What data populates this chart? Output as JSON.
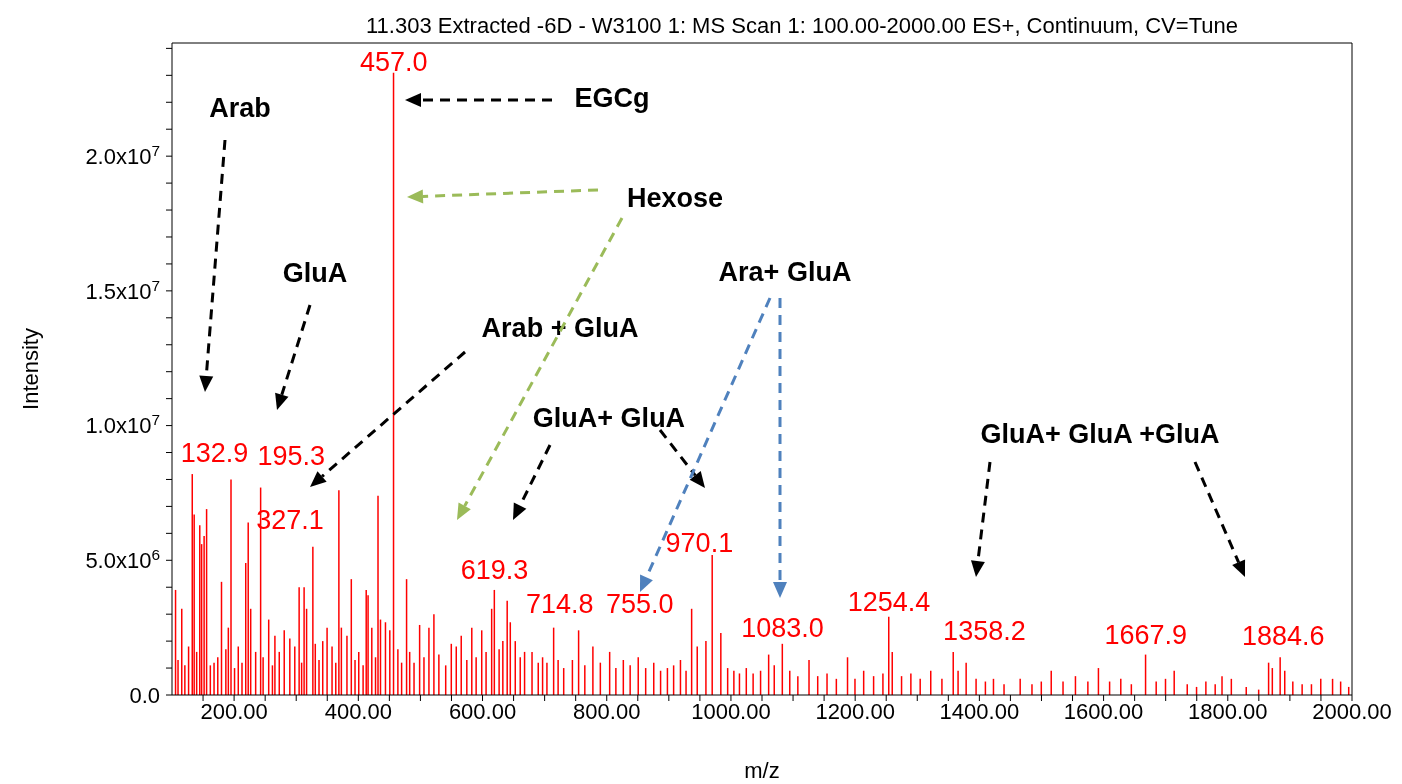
{
  "chart_data": {
    "type": "bar",
    "title": "11.303 Extracted -6D - W3100 1: MS Scan 1: 100.00-2000.00 ES+, Continuum, CV=Tune",
    "xlabel": "m/z",
    "ylabel": "Intensity",
    "color": "#ff0000",
    "x": [
      106,
      110,
      116,
      121,
      127,
      132.9,
      136,
      140,
      145,
      148,
      152,
      156,
      162,
      168,
      174,
      180,
      187,
      191,
      195.3,
      201,
      207,
      213,
      219,
      223,
      227,
      235,
      243,
      247,
      256,
      262,
      266,
      273,
      281,
      290,
      298,
      305,
      309,
      313,
      317,
      327.1,
      331,
      337,
      343,
      350,
      358,
      364,
      369,
      373,
      382,
      389,
      395,
      401,
      408,
      413,
      416,
      422,
      428,
      432,
      436,
      444,
      451,
      457,
      464,
      470,
      478,
      483,
      490,
      499,
      506,
      514,
      522,
      530,
      541,
      550,
      558,
      566,
      575,
      583,
      590,
      599,
      606,
      615,
      619.3,
      627,
      633,
      640,
      645,
      653,
      661,
      668,
      680,
      690,
      697,
      704,
      714.8,
      722,
      731,
      745,
      755,
      765,
      778,
      790,
      805,
      815,
      827,
      838,
      851,
      863,
      876,
      887,
      898,
      908,
      919,
      928,
      937,
      946,
      960,
      970.1,
      984,
      995,
      1005,
      1014,
      1025,
      1036,
      1048,
      1061,
      1070,
      1083,
      1095,
      1108,
      1126,
      1140,
      1155,
      1170,
      1188,
      1200,
      1214,
      1230,
      1245,
      1254.4,
      1260,
      1275,
      1290,
      1305,
      1322,
      1340,
      1358.2,
      1366,
      1379,
      1395,
      1410,
      1423,
      1440,
      1466,
      1485,
      1500,
      1516,
      1535,
      1555,
      1575,
      1592,
      1610,
      1628,
      1645,
      1667.9,
      1685,
      1700,
      1714,
      1735,
      1750,
      1765,
      1780,
      1791,
      1806,
      1830,
      1850,
      1866,
      1872,
      1884.6,
      1892,
      1905,
      1920,
      1935,
      1950,
      1969,
      1982,
      1995
    ],
    "values": [
      3900000,
      1300000,
      3200000,
      1100000,
      1800000,
      8200000,
      6700000,
      1600000,
      6300000,
      5600000,
      5900000,
      6900000,
      1100000,
      1200000,
      1400000,
      4200000,
      1700000,
      2500000,
      8000000,
      1000000,
      1800000,
      1200000,
      4900000,
      6400000,
      3200000,
      1600000,
      7700000,
      1400000,
      2800000,
      1100000,
      2200000,
      1600000,
      2400000,
      2100000,
      1800000,
      4000000,
      1200000,
      4000000,
      3200000,
      5500000,
      1900000,
      1300000,
      2000000,
      2500000,
      1800000,
      1200000,
      7600000,
      2500000,
      2200000,
      4300000,
      1300000,
      1600000,
      1100000,
      3900000,
      3700000,
      2500000,
      1400000,
      7400000,
      2800000,
      2700000,
      2400000,
      23100000,
      1700000,
      1200000,
      4300000,
      1600000,
      1200000,
      2600000,
      1400000,
      2500000,
      3000000,
      1500000,
      1100000,
      1900000,
      1800000,
      2200000,
      1300000,
      2500000,
      1400000,
      2400000,
      1600000,
      3200000,
      3900000,
      1700000,
      2000000,
      3500000,
      2700000,
      2000000,
      1400000,
      1600000,
      1600000,
      1200000,
      1400000,
      1200000,
      2500000,
      1300000,
      1000000,
      1300000,
      2400000,
      1100000,
      1800000,
      1200000,
      1600000,
      1000000,
      1300000,
      1100000,
      1400000,
      1000000,
      1200000,
      900000,
      1000000,
      1100000,
      1300000,
      900000,
      3200000,
      1800000,
      2000000,
      5200000,
      2300000,
      1000000,
      900000,
      800000,
      1000000,
      800000,
      900000,
      1500000,
      1100000,
      1900000,
      900000,
      700000,
      1300000,
      700000,
      800000,
      600000,
      1400000,
      600000,
      900000,
      700000,
      800000,
      2900000,
      1600000,
      700000,
      800000,
      600000,
      900000,
      600000,
      1600000,
      900000,
      1200000,
      600000,
      500000,
      600000,
      400000,
      600000,
      400000,
      500000,
      900000,
      500000,
      700000,
      500000,
      1000000,
      500000,
      600000,
      400000,
      1500000,
      500000,
      600000,
      900000,
      400000,
      300000,
      500000,
      400000,
      700000,
      600000,
      300000,
      200000,
      1200000,
      1000000,
      1400000,
      900000,
      500000,
      400000,
      400000,
      600000,
      600000,
      500000,
      300000
    ],
    "xlim": [
      100,
      2000
    ],
    "xticks": [
      {
        "value": 150,
        "label": null
      },
      {
        "value": 200,
        "label": "200.00"
      },
      {
        "value": 250,
        "label": null
      },
      {
        "value": 300,
        "label": null
      },
      {
        "value": 350,
        "label": null
      },
      {
        "value": 400,
        "label": "400.00"
      },
      {
        "value": 450,
        "label": null
      },
      {
        "value": 500,
        "label": null
      },
      {
        "value": 550,
        "label": null
      },
      {
        "value": 600,
        "label": "600.00"
      },
      {
        "value": 650,
        "label": null
      },
      {
        "value": 700,
        "label": null
      },
      {
        "value": 750,
        "label": null
      },
      {
        "value": 800,
        "label": "800.00"
      },
      {
        "value": 850,
        "label": null
      },
      {
        "value": 900,
        "label": null
      },
      {
        "value": 950,
        "label": null
      },
      {
        "value": 1000,
        "label": "1000.00"
      },
      {
        "value": 1050,
        "label": null
      },
      {
        "value": 1100,
        "label": null
      },
      {
        "value": 1150,
        "label": null
      },
      {
        "value": 1200,
        "label": "1200.00"
      },
      {
        "value": 1250,
        "label": null
      },
      {
        "value": 1300,
        "label": null
      },
      {
        "value": 1350,
        "label": null
      },
      {
        "value": 1400,
        "label": "1400.00"
      },
      {
        "value": 1450,
        "label": null
      },
      {
        "value": 1500,
        "label": null
      },
      {
        "value": 1550,
        "label": null
      },
      {
        "value": 1600,
        "label": "1600.00"
      },
      {
        "value": 1650,
        "label": null
      },
      {
        "value": 1700,
        "label": null
      },
      {
        "value": 1750,
        "label": null
      },
      {
        "value": 1800,
        "label": "1800.00"
      },
      {
        "value": 1850,
        "label": null
      },
      {
        "value": 1900,
        "label": null
      },
      {
        "value": 1950,
        "label": null
      },
      {
        "value": 2000,
        "label": "2000.00"
      }
    ],
    "ylim": [
      0,
      24200000
    ],
    "yticks": [
      {
        "value": 0,
        "label": "0.0"
      },
      {
        "value": 1000000,
        "label": null
      },
      {
        "value": 2000000,
        "label": null
      },
      {
        "value": 3000000,
        "label": null
      },
      {
        "value": 4000000,
        "label": null
      },
      {
        "value": 5000000,
        "label": "5.0x10$^{6}$"
      },
      {
        "value": 6000000,
        "label": null
      },
      {
        "value": 7000000,
        "label": null
      },
      {
        "value": 8000000,
        "label": null
      },
      {
        "value": 9000000,
        "label": null
      },
      {
        "value": 10000000,
        "label": "1.0x10$^{7}$"
      },
      {
        "value": 11000000,
        "label": null
      },
      {
        "value": 12000000,
        "label": null
      },
      {
        "value": 13000000,
        "label": null
      },
      {
        "value": 14000000,
        "label": null
      },
      {
        "value": 15000000,
        "label": "1.5x10$^{7}$"
      },
      {
        "value": 16000000,
        "label": null
      },
      {
        "value": 17000000,
        "label": null
      },
      {
        "value": 18000000,
        "label": null
      },
      {
        "value": 19000000,
        "label": null
      },
      {
        "value": 20000000,
        "label": "2.0x10$^{7}$"
      },
      {
        "value": 21000000,
        "label": null
      },
      {
        "value": 22000000,
        "label": null
      },
      {
        "value": 23000000,
        "label": null
      },
      {
        "value": 24000000,
        "label": null
      }
    ],
    "annotations": [
      {
        "text": "132.9",
        "x": 132.9,
        "y": 8200000
      },
      {
        "text": "195.3",
        "x": 195.3,
        "y": 8000000
      },
      {
        "text": "327.1",
        "x": 327.1,
        "y": 5500000
      },
      {
        "text": "457.0",
        "x": 457,
        "y": 23100000
      },
      {
        "text": "619.3",
        "x": 619.3,
        "y": 3900000
      },
      {
        "text": "714.8",
        "x": 714.8,
        "y": 2500000
      },
      {
        "text": "755.0",
        "x": 755,
        "y": 2400000
      },
      {
        "text": "970.1",
        "x": 970.1,
        "y": 5200000
      },
      {
        "text": "1083.0",
        "x": 1083,
        "y": 1900000
      },
      {
        "text": "1254.4",
        "x": 1254.4,
        "y": 2900000
      },
      {
        "text": "1358.2",
        "x": 1358.2,
        "y": 1600000
      },
      {
        "text": "1667.9",
        "x": 1667.9,
        "y": 1500000
      },
      {
        "text": "1884.6",
        "x": 1884.6,
        "y": 1400000
      },
      "Arab",
      "GluA",
      "Arab + GluA",
      "EGCg",
      "Hexose",
      "GluA+ GluA",
      "Ara+ GluA",
      "GluA+ GluA +GluA"
    ]
  }
}
